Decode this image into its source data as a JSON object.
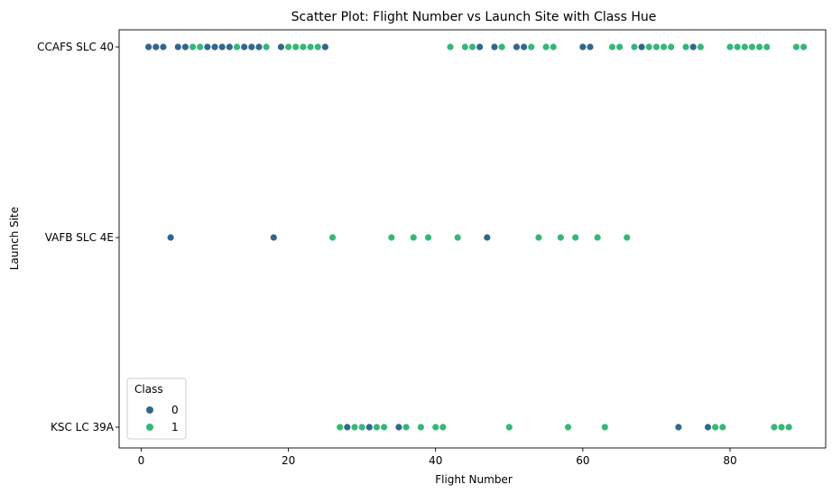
{
  "chart_data": {
    "type": "scatter",
    "title": "Scatter Plot: Flight Number vs Launch Site with Class Hue",
    "xlabel": "Flight Number",
    "ylabel": "Launch Site",
    "xlim": [
      -3,
      93
    ],
    "xticks": [
      0,
      20,
      40,
      60,
      80
    ],
    "categories": [
      "CCAFS SLC 40",
      "VAFB SLC 4E",
      "KSC LC 39A"
    ],
    "legend": {
      "title": "Class",
      "placement": "lower-left",
      "entries": [
        "0",
        "1"
      ]
    },
    "grid": false,
    "colors": {
      "0": "#30678d",
      "1": "#35b778"
    },
    "series": [
      {
        "name": "0",
        "points": [
          {
            "x": 1,
            "y": "CCAFS SLC 40"
          },
          {
            "x": 2,
            "y": "CCAFS SLC 40"
          },
          {
            "x": 3,
            "y": "CCAFS SLC 40"
          },
          {
            "x": 5,
            "y": "CCAFS SLC 40"
          },
          {
            "x": 6,
            "y": "CCAFS SLC 40"
          },
          {
            "x": 9,
            "y": "CCAFS SLC 40"
          },
          {
            "x": 10,
            "y": "CCAFS SLC 40"
          },
          {
            "x": 11,
            "y": "CCAFS SLC 40"
          },
          {
            "x": 12,
            "y": "CCAFS SLC 40"
          },
          {
            "x": 14,
            "y": "CCAFS SLC 40"
          },
          {
            "x": 15,
            "y": "CCAFS SLC 40"
          },
          {
            "x": 16,
            "y": "CCAFS SLC 40"
          },
          {
            "x": 19,
            "y": "CCAFS SLC 40"
          },
          {
            "x": 25,
            "y": "CCAFS SLC 40"
          },
          {
            "x": 46,
            "y": "CCAFS SLC 40"
          },
          {
            "x": 48,
            "y": "CCAFS SLC 40"
          },
          {
            "x": 51,
            "y": "CCAFS SLC 40"
          },
          {
            "x": 52,
            "y": "CCAFS SLC 40"
          },
          {
            "x": 60,
            "y": "CCAFS SLC 40"
          },
          {
            "x": 61,
            "y": "CCAFS SLC 40"
          },
          {
            "x": 68,
            "y": "CCAFS SLC 40"
          },
          {
            "x": 75,
            "y": "CCAFS SLC 40"
          },
          {
            "x": 4,
            "y": "VAFB SLC 4E"
          },
          {
            "x": 18,
            "y": "VAFB SLC 4E"
          },
          {
            "x": 47,
            "y": "VAFB SLC 4E"
          },
          {
            "x": 28,
            "y": "KSC LC 39A"
          },
          {
            "x": 31,
            "y": "KSC LC 39A"
          },
          {
            "x": 35,
            "y": "KSC LC 39A"
          },
          {
            "x": 73,
            "y": "KSC LC 39A"
          },
          {
            "x": 77,
            "y": "KSC LC 39A"
          }
        ]
      },
      {
        "name": "1",
        "points": [
          {
            "x": 7,
            "y": "CCAFS SLC 40"
          },
          {
            "x": 8,
            "y": "CCAFS SLC 40"
          },
          {
            "x": 13,
            "y": "CCAFS SLC 40"
          },
          {
            "x": 17,
            "y": "CCAFS SLC 40"
          },
          {
            "x": 20,
            "y": "CCAFS SLC 40"
          },
          {
            "x": 21,
            "y": "CCAFS SLC 40"
          },
          {
            "x": 22,
            "y": "CCAFS SLC 40"
          },
          {
            "x": 23,
            "y": "CCAFS SLC 40"
          },
          {
            "x": 24,
            "y": "CCAFS SLC 40"
          },
          {
            "x": 42,
            "y": "CCAFS SLC 40"
          },
          {
            "x": 44,
            "y": "CCAFS SLC 40"
          },
          {
            "x": 45,
            "y": "CCAFS SLC 40"
          },
          {
            "x": 49,
            "y": "CCAFS SLC 40"
          },
          {
            "x": 53,
            "y": "CCAFS SLC 40"
          },
          {
            "x": 55,
            "y": "CCAFS SLC 40"
          },
          {
            "x": 56,
            "y": "CCAFS SLC 40"
          },
          {
            "x": 64,
            "y": "CCAFS SLC 40"
          },
          {
            "x": 65,
            "y": "CCAFS SLC 40"
          },
          {
            "x": 67,
            "y": "CCAFS SLC 40"
          },
          {
            "x": 69,
            "y": "CCAFS SLC 40"
          },
          {
            "x": 70,
            "y": "CCAFS SLC 40"
          },
          {
            "x": 71,
            "y": "CCAFS SLC 40"
          },
          {
            "x": 72,
            "y": "CCAFS SLC 40"
          },
          {
            "x": 74,
            "y": "CCAFS SLC 40"
          },
          {
            "x": 76,
            "y": "CCAFS SLC 40"
          },
          {
            "x": 80,
            "y": "CCAFS SLC 40"
          },
          {
            "x": 81,
            "y": "CCAFS SLC 40"
          },
          {
            "x": 82,
            "y": "CCAFS SLC 40"
          },
          {
            "x": 83,
            "y": "CCAFS SLC 40"
          },
          {
            "x": 84,
            "y": "CCAFS SLC 40"
          },
          {
            "x": 85,
            "y": "CCAFS SLC 40"
          },
          {
            "x": 89,
            "y": "CCAFS SLC 40"
          },
          {
            "x": 90,
            "y": "CCAFS SLC 40"
          },
          {
            "x": 26,
            "y": "VAFB SLC 4E"
          },
          {
            "x": 34,
            "y": "VAFB SLC 4E"
          },
          {
            "x": 37,
            "y": "VAFB SLC 4E"
          },
          {
            "x": 39,
            "y": "VAFB SLC 4E"
          },
          {
            "x": 43,
            "y": "VAFB SLC 4E"
          },
          {
            "x": 54,
            "y": "VAFB SLC 4E"
          },
          {
            "x": 57,
            "y": "VAFB SLC 4E"
          },
          {
            "x": 59,
            "y": "VAFB SLC 4E"
          },
          {
            "x": 62,
            "y": "VAFB SLC 4E"
          },
          {
            "x": 66,
            "y": "VAFB SLC 4E"
          },
          {
            "x": 27,
            "y": "KSC LC 39A"
          },
          {
            "x": 29,
            "y": "KSC LC 39A"
          },
          {
            "x": 30,
            "y": "KSC LC 39A"
          },
          {
            "x": 32,
            "y": "KSC LC 39A"
          },
          {
            "x": 33,
            "y": "KSC LC 39A"
          },
          {
            "x": 36,
            "y": "KSC LC 39A"
          },
          {
            "x": 38,
            "y": "KSC LC 39A"
          },
          {
            "x": 40,
            "y": "KSC LC 39A"
          },
          {
            "x": 41,
            "y": "KSC LC 39A"
          },
          {
            "x": 50,
            "y": "KSC LC 39A"
          },
          {
            "x": 58,
            "y": "KSC LC 39A"
          },
          {
            "x": 63,
            "y": "KSC LC 39A"
          },
          {
            "x": 78,
            "y": "KSC LC 39A"
          },
          {
            "x": 79,
            "y": "KSC LC 39A"
          },
          {
            "x": 86,
            "y": "KSC LC 39A"
          },
          {
            "x": 87,
            "y": "KSC LC 39A"
          },
          {
            "x": 88,
            "y": "KSC LC 39A"
          }
        ]
      }
    ]
  }
}
